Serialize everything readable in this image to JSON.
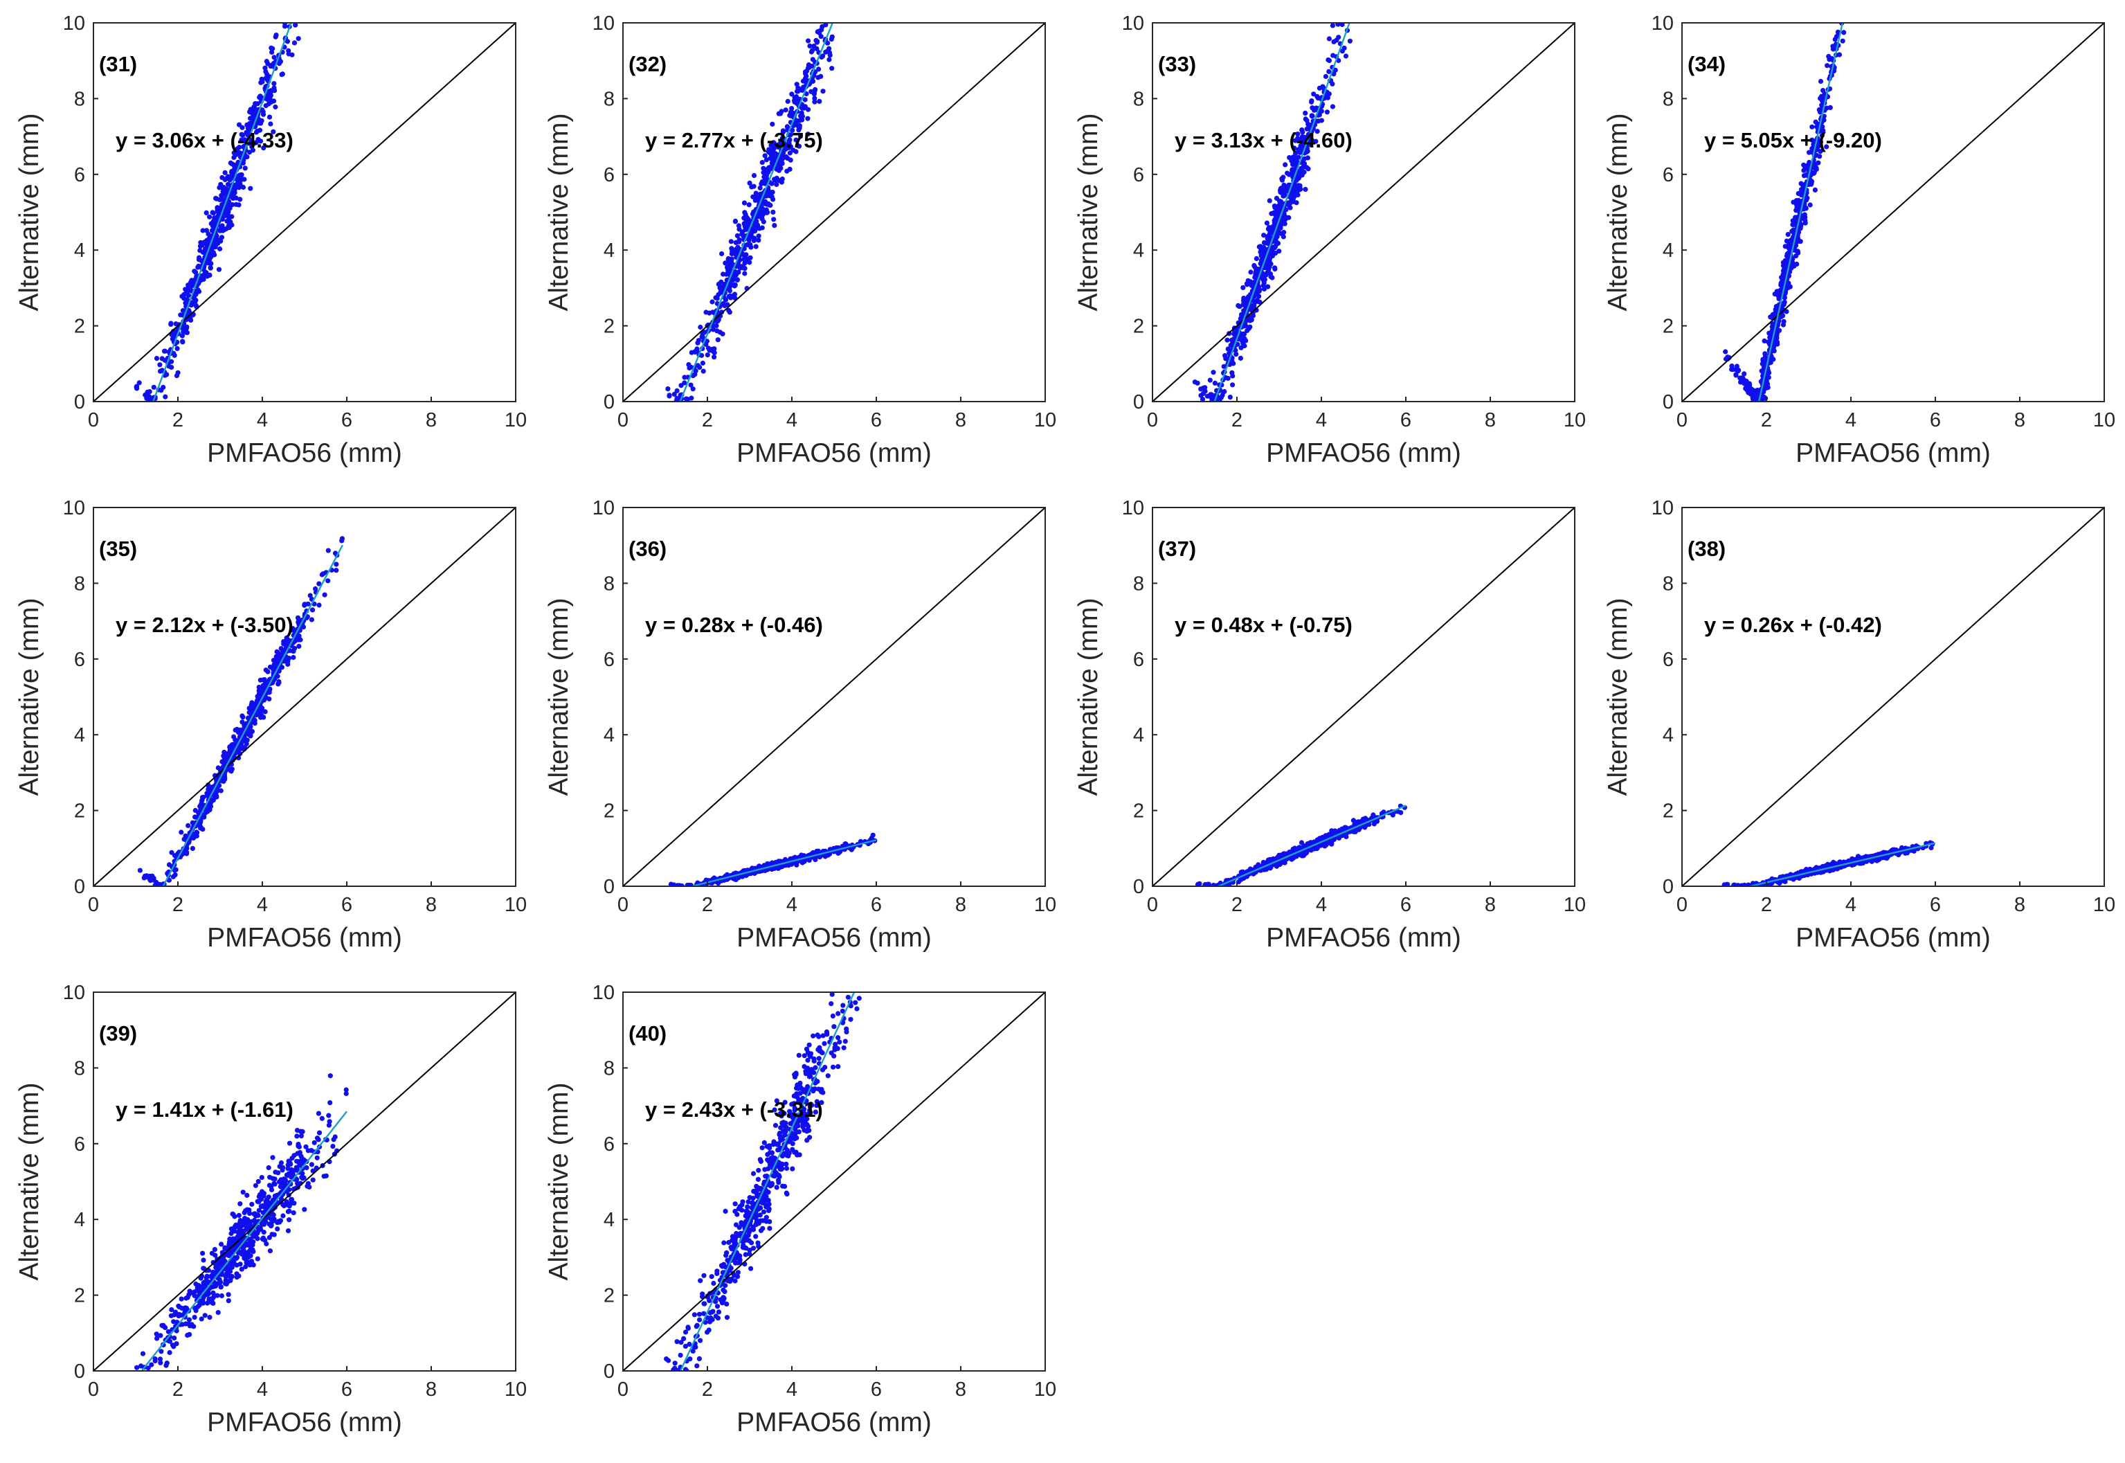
{
  "figure": {
    "description_free": true,
    "rows": 3,
    "cols": 4
  },
  "colors": {
    "scatter": "#1010ee",
    "scatter_core": "#2a2aff",
    "fit_line": "#1aa0c8",
    "identity_line": "#000000",
    "axes": "#262626"
  },
  "chart_data": [
    {
      "id": "31",
      "type": "scatter",
      "label": "(31)",
      "equation": "y = 3.06x + (-4.33)",
      "slope": 3.06,
      "intercept": -4.33,
      "xlabel": "PMFAO56 (mm)",
      "ylabel": "Alternative (mm)",
      "xlim": [
        0,
        10
      ],
      "ylim": [
        0,
        10
      ],
      "xticks": [
        "0",
        "2",
        "4",
        "6",
        "8",
        "10"
      ],
      "yticks": [
        "0",
        "2",
        "4",
        "6",
        "8",
        "10"
      ],
      "x_range": [
        1.0,
        5.3
      ],
      "spread": 0.5,
      "fit_line": true,
      "identity_line": true
    },
    {
      "id": "32",
      "type": "scatter",
      "label": "(32)",
      "equation": "y = 2.77x + (-3.75)",
      "slope": 2.77,
      "intercept": -3.75,
      "xlabel": "PMFAO56 (mm)",
      "ylabel": "Alternative (mm)",
      "xlim": [
        0,
        10
      ],
      "ylim": [
        0,
        10
      ],
      "xticks": [
        "0",
        "2",
        "4",
        "6",
        "8",
        "10"
      ],
      "yticks": [
        "0",
        "2",
        "4",
        "6",
        "8",
        "10"
      ],
      "x_range": [
        1.0,
        5.5
      ],
      "spread": 0.6,
      "fit_line": true,
      "identity_line": true
    },
    {
      "id": "33",
      "type": "scatter",
      "label": "(33)",
      "equation": "y = 3.13x + (-4.60)",
      "slope": 3.13,
      "intercept": -4.6,
      "xlabel": "PMFAO56 (mm)",
      "ylabel": "Alternative (mm)",
      "xlim": [
        0,
        10
      ],
      "ylim": [
        0,
        10
      ],
      "xticks": [
        "0",
        "2",
        "4",
        "6",
        "8",
        "10"
      ],
      "yticks": [
        "0",
        "2",
        "4",
        "6",
        "8",
        "10"
      ],
      "x_range": [
        1.0,
        4.7
      ],
      "spread": 0.5,
      "fit_line": true,
      "identity_line": true
    },
    {
      "id": "34",
      "type": "scatter",
      "label": "(34)",
      "equation": "y = 5.05x + (-9.20)",
      "slope": 5.05,
      "intercept": -9.2,
      "xlabel": "PMFAO56 (mm)",
      "ylabel": "Alternative (mm)",
      "xlim": [
        0,
        10
      ],
      "ylim": [
        0,
        10
      ],
      "xticks": [
        "0",
        "2",
        "4",
        "6",
        "8",
        "10"
      ],
      "yticks": [
        "0",
        "2",
        "4",
        "6",
        "8",
        "10"
      ],
      "x_range": [
        1.0,
        4.0
      ],
      "spread": 0.5,
      "fit_line": true,
      "identity_line": true
    },
    {
      "id": "35",
      "type": "scatter",
      "label": "(35)",
      "equation": "y = 2.12x + (-3.50)",
      "slope": 2.12,
      "intercept": -3.5,
      "xlabel": "PMFAO56 (mm)",
      "ylabel": "Alternative (mm)",
      "xlim": [
        0,
        10
      ],
      "ylim": [
        0,
        10
      ],
      "xticks": [
        "0",
        "2",
        "4",
        "6",
        "8",
        "10"
      ],
      "yticks": [
        "0",
        "2",
        "4",
        "6",
        "8",
        "10"
      ],
      "x_range": [
        1.0,
        5.9
      ],
      "spread": 0.25,
      "fit_line": true,
      "identity_line": true
    },
    {
      "id": "36",
      "type": "scatter",
      "label": "(36)",
      "equation": "y = 0.28x + (-0.46)",
      "slope": 0.28,
      "intercept": -0.46,
      "xlabel": "PMFAO56 (mm)",
      "ylabel": "Alternative (mm)",
      "xlim": [
        0,
        10
      ],
      "ylim": [
        0,
        10
      ],
      "xticks": [
        "0",
        "2",
        "4",
        "6",
        "8",
        "10"
      ],
      "yticks": [
        "0",
        "2",
        "4",
        "6",
        "8",
        "10"
      ],
      "x_range": [
        1.0,
        6.0
      ],
      "spread": 0.05,
      "fit_line": true,
      "identity_line": true
    },
    {
      "id": "37",
      "type": "scatter",
      "label": "(37)",
      "equation": "y = 0.48x + (-0.75)",
      "slope": 0.48,
      "intercept": -0.75,
      "xlabel": "PMFAO56 (mm)",
      "ylabel": "Alternative (mm)",
      "xlim": [
        0,
        10
      ],
      "ylim": [
        0,
        10
      ],
      "xticks": [
        "0",
        "2",
        "4",
        "6",
        "8",
        "10"
      ],
      "yticks": [
        "0",
        "2",
        "4",
        "6",
        "8",
        "10"
      ],
      "x_range": [
        1.0,
        6.0
      ],
      "spread": 0.08,
      "fit_line": true,
      "identity_line": true
    },
    {
      "id": "38",
      "type": "scatter",
      "label": "(38)",
      "equation": "y = 0.26x + (-0.42)",
      "slope": 0.26,
      "intercept": -0.42,
      "xlabel": "PMFAO56 (mm)",
      "ylabel": "Alternative (mm)",
      "xlim": [
        0,
        10
      ],
      "ylim": [
        0,
        10
      ],
      "xticks": [
        "0",
        "2",
        "4",
        "6",
        "8",
        "10"
      ],
      "yticks": [
        "0",
        "2",
        "4",
        "6",
        "8",
        "10"
      ],
      "x_range": [
        1.0,
        6.0
      ],
      "spread": 0.05,
      "fit_line": true,
      "identity_line": true
    },
    {
      "id": "39",
      "type": "scatter",
      "label": "(39)",
      "equation": "y = 1.41x + (-1.61)",
      "slope": 1.41,
      "intercept": -1.61,
      "xlabel": "PMFAO56 (mm)",
      "ylabel": "Alternative (mm)",
      "xlim": [
        0,
        10
      ],
      "ylim": [
        0,
        10
      ],
      "xticks": [
        "0",
        "2",
        "4",
        "6",
        "8",
        "10"
      ],
      "yticks": [
        "0",
        "2",
        "4",
        "6",
        "8",
        "10"
      ],
      "x_range": [
        1.0,
        6.0
      ],
      "spread": 0.55,
      "fit_line": true,
      "identity_line": true
    },
    {
      "id": "40",
      "type": "scatter",
      "label": "(40)",
      "equation": "y = 2.43x + (-3.31)",
      "slope": 2.43,
      "intercept": -3.31,
      "xlabel": "PMFAO56 (mm)",
      "ylabel": "Alternative (mm)",
      "xlim": [
        0,
        10
      ],
      "ylim": [
        0,
        10
      ],
      "xticks": [
        "0",
        "2",
        "4",
        "6",
        "8",
        "10"
      ],
      "yticks": [
        "0",
        "2",
        "4",
        "6",
        "8",
        "10"
      ],
      "x_range": [
        1.0,
        5.8
      ],
      "spread": 0.7,
      "fit_line": true,
      "identity_line": true
    }
  ]
}
